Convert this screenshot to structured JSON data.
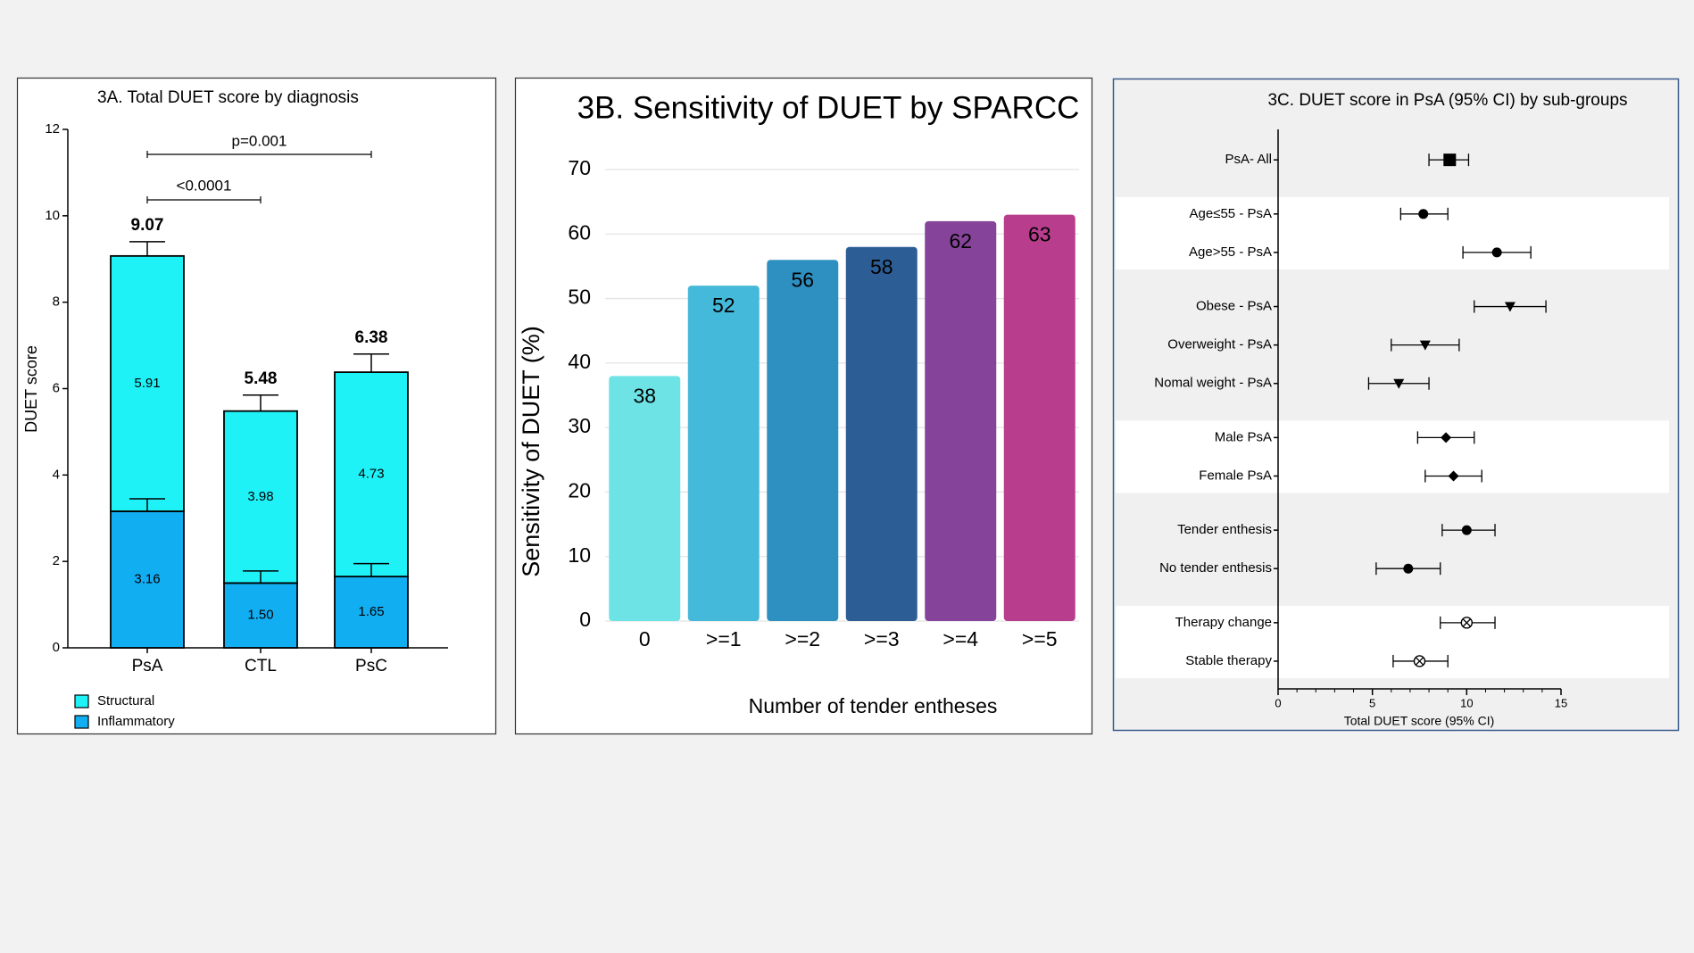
{
  "chart_data": [
    {
      "type": "stacked_bar",
      "title": "3A.   Total DUET score by diagnosis",
      "y_label": "DUET score",
      "categories": [
        "PsA",
        "CTL",
        "PsC"
      ],
      "series": [
        {
          "name": "Inflammatory",
          "color": "#12aef2",
          "values": [
            3.16,
            1.5,
            1.65
          ],
          "value_labels": [
            "3.16",
            "1.50",
            "1.65"
          ],
          "errors": [
            0.29,
            0.28,
            0.3
          ]
        },
        {
          "name": "Structural",
          "color": "#1ff2f7",
          "values": [
            5.91,
            3.98,
            4.73
          ],
          "errors": [
            0.33,
            0.37,
            0.42
          ]
        }
      ],
      "totals": [
        9.07,
        5.48,
        6.38
      ],
      "annotations": [
        "<0.0001",
        "p=0.001"
      ],
      "ylim": [
        0,
        12
      ],
      "yticks": [
        0,
        2,
        4,
        6,
        8,
        10,
        12
      ],
      "legend": "bottom-left"
    },
    {
      "type": "bar",
      "title": "3B. Sensitivity of DUET by SPARCC",
      "x_label": "Number of tender entheses",
      "y_label": "Sensitivity of DUET (%)",
      "categories": [
        "0",
        ">=1",
        ">=2",
        ">=3",
        ">=4",
        ">=5"
      ],
      "values": [
        38,
        52,
        56,
        58,
        62,
        63
      ],
      "colors": [
        "#6ee3e6",
        "#45b9d9",
        "#2e8fc1",
        "#2d5d95",
        "#854499",
        "#b83e8d"
      ],
      "ylim": [
        0,
        70
      ],
      "yticks": [
        0,
        10,
        20,
        30,
        40,
        50,
        60,
        70
      ],
      "grid": true
    },
    {
      "type": "forest",
      "title": "3C. DUET score in PsA (95% CI) by sub-groups",
      "x_label": "Total DUET score (95% CI)",
      "categories": [
        "PsA- All",
        "Age≤55 - PsA",
        "Age>55 - PsA",
        "Obese - PsA",
        "Overweight - PsA",
        "Nomal weight - PsA",
        "Male PsA",
        "Female PsA",
        "Tender enthesis",
        "No tender enthesis",
        "Therapy change",
        "Stable therapy"
      ],
      "values": [
        9.1,
        7.7,
        11.6,
        12.3,
        7.8,
        6.4,
        8.9,
        9.3,
        10.0,
        6.9,
        10.0,
        7.5
      ],
      "ci_low": [
        8.0,
        6.5,
        9.8,
        10.4,
        6.0,
        4.8,
        7.4,
        7.8,
        8.7,
        5.2,
        8.6,
        6.1
      ],
      "ci_high": [
        10.1,
        9.0,
        13.4,
        14.2,
        9.6,
        8.0,
        10.4,
        10.8,
        11.5,
        8.6,
        11.5,
        9.0
      ],
      "markers": [
        "square",
        "circle",
        "circle",
        "triangle-down",
        "triangle-down",
        "triangle-down",
        "diamond",
        "diamond",
        "circle",
        "circle",
        "circle-x",
        "circle-x"
      ],
      "color": "#000000",
      "xlim": [
        0,
        15
      ],
      "xticks": [
        0,
        5,
        10,
        15
      ]
    }
  ]
}
